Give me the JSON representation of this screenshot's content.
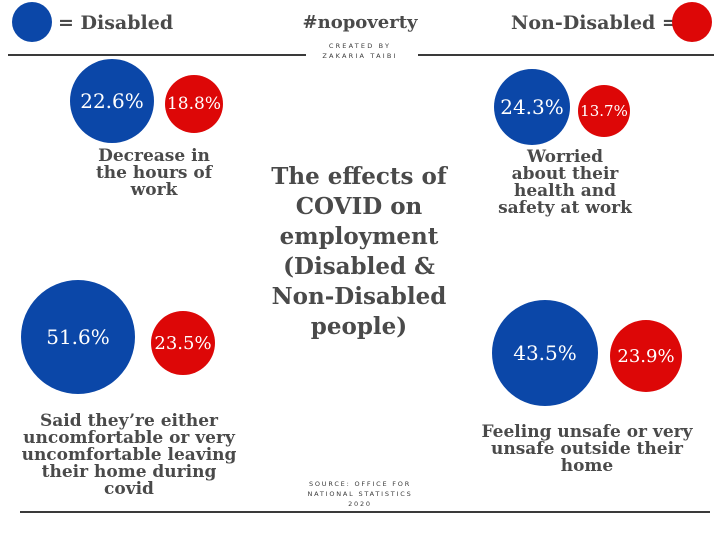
{
  "legend": {
    "disabled_label": "= Disabled",
    "non_disabled_label": "Non-Disabled =",
    "disabled_color": "#0b47a8",
    "non_disabled_color": "#dd0707"
  },
  "header": {
    "hashtag": "#nopoverty",
    "credit_line1": "CREATED BY",
    "credit_line2": "ZAKARIA TAIBI"
  },
  "title": {
    "line1": "The effects of",
    "line2": "COVID on",
    "line3": "employment",
    "line4": "(Disabled &",
    "line5": "Non-Disabled",
    "line6": "people)"
  },
  "source": {
    "line1": "SOURCE: OFFICE FOR",
    "line2": "NATIONAL STATISTICS",
    "line3": "2020"
  },
  "chart_data": {
    "type": "bubble",
    "title": "The effects of COVID on employment (Disabled & Non-Disabled people)",
    "series": [
      {
        "name": "Disabled",
        "color": "#0b47a8"
      },
      {
        "name": "Non-Disabled",
        "color": "#dd0707"
      }
    ],
    "items": [
      {
        "caption_lines": [
          "Decrease in",
          "the hours of",
          "work"
        ],
        "disabled": 22.6,
        "non_disabled": 18.8,
        "disabled_label": "22.6%",
        "non_disabled_label": "18.8%"
      },
      {
        "caption_lines": [
          "Worried",
          "about their",
          "health and",
          "safety at work"
        ],
        "disabled": 24.3,
        "non_disabled": 13.7,
        "disabled_label": "24.3%",
        "non_disabled_label": "13.7%"
      },
      {
        "caption_lines": [
          "Said they’re either",
          "uncomfortable or very",
          "uncomfortable leaving",
          "their home during",
          "covid"
        ],
        "disabled": 51.6,
        "non_disabled": 23.5,
        "disabled_label": "51.6%",
        "non_disabled_label": "23.5%"
      },
      {
        "caption_lines": [
          "Feeling unsafe or very",
          "unsafe outside their",
          "home"
        ],
        "disabled": 43.5,
        "non_disabled": 23.9,
        "disabled_label": "43.5%",
        "non_disabled_label": "23.9%"
      }
    ]
  }
}
